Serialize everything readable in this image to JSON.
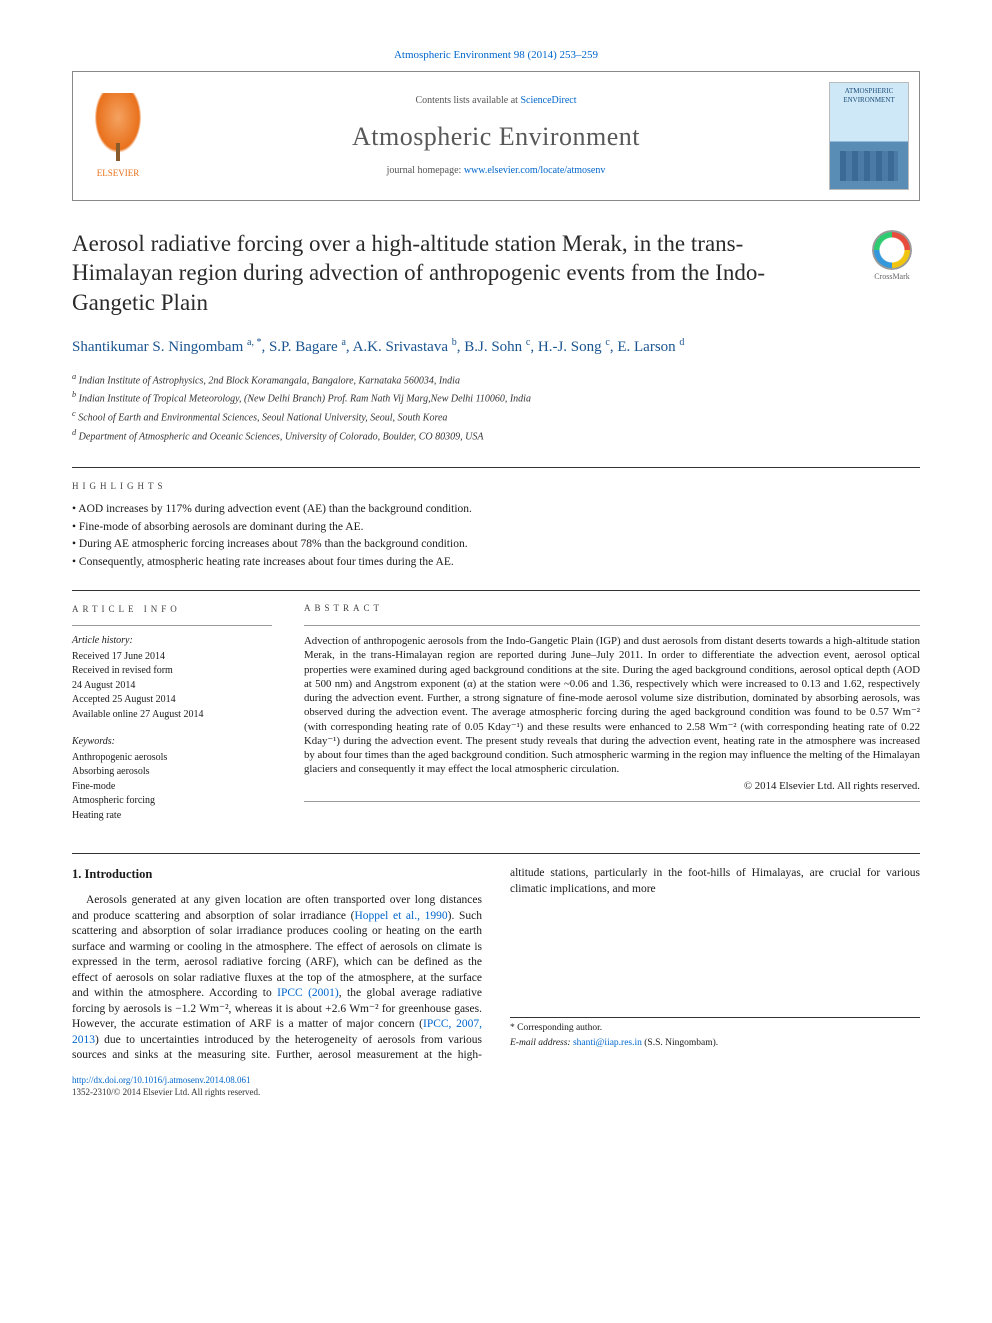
{
  "citation": {
    "text": "Atmospheric Environment 98 (2014) 253–259",
    "journal": "Atmospheric Environment",
    "volume": "98",
    "year": "2014",
    "pages": "253–259"
  },
  "header": {
    "contents_prefix": "Contents lists available at ",
    "contents_link": "ScienceDirect",
    "journal_name": "Atmospheric Environment",
    "homepage_prefix": "journal homepage: ",
    "homepage_link": "www.elsevier.com/locate/atmosenv",
    "publisher_name": "ELSEVIER",
    "cover_title": "ATMOSPHERIC ENVIRONMENT"
  },
  "crossmark_label": "CrossMark",
  "article": {
    "title": "Aerosol radiative forcing over a high-altitude station Merak, in the trans-Himalayan region during advection of anthropogenic events from the Indo-Gangetic Plain",
    "authors_html": "Shantikumar S. Ningombam <sup>a, *</sup>, S.P. Bagare <sup>a</sup>, A.K. Srivastava <sup>b</sup>, B.J. Sohn <sup>c</sup>, H.-J. Song <sup>c</sup>, E. Larson <sup>d</sup>",
    "affiliations": [
      "a Indian Institute of Astrophysics, 2nd Block Koramangala, Bangalore, Karnataka 560034, India",
      "b Indian Institute of Tropical Meteorology, (New Delhi Branch) Prof. Ram Nath Vij Marg,New Delhi 110060, India",
      "c School of Earth and Environmental Sciences, Seoul National University, Seoul, South Korea",
      "d Department of Atmospheric and Oceanic Sciences, University of Colorado, Boulder, CO 80309, USA"
    ]
  },
  "highlights": {
    "label": "HIGHLIGHTS",
    "items": [
      "AOD increases by 117% during advection event (AE) than the background condition.",
      "Fine-mode of absorbing aerosols are dominant during the AE.",
      "During AE atmospheric forcing increases about 78% than the background condition.",
      "Consequently, atmospheric heating rate increases about four times during the AE."
    ]
  },
  "article_info": {
    "label": "ARTICLE INFO",
    "history_head": "Article history:",
    "history": [
      "Received 17 June 2014",
      "Received in revised form",
      "24 August 2014",
      "Accepted 25 August 2014",
      "Available online 27 August 2014"
    ],
    "keywords_head": "Keywords:",
    "keywords": [
      "Anthropogenic aerosols",
      "Absorbing aerosols",
      "Fine-mode",
      "Atmospheric forcing",
      "Heating rate"
    ]
  },
  "abstract": {
    "label": "ABSTRACT",
    "text": "Advection of anthropogenic aerosols from the Indo-Gangetic Plain (IGP) and dust aerosols from distant deserts towards a high-altitude station Merak, in the trans-Himalayan region are reported during June–July 2011. In order to differentiate the advection event, aerosol optical properties were examined during aged background conditions at the site. During the aged background conditions, aerosol optical depth (AOD at 500 nm) and Angstrom exponent (α) at the station were ~0.06 and 1.36, respectively which were increased to 0.13 and 1.62, respectively during the advection event. Further, a strong signature of fine-mode aerosol volume size distribution, dominated by absorbing aerosols, was observed during the advection event. The average atmospheric forcing during the aged background condition was found to be 0.57 Wm⁻² (with corresponding heating rate of 0.05 Kday⁻¹) and these results were enhanced to 2.58 Wm⁻² (with corresponding heating rate of 0.22 Kday⁻¹) during the advection event. The present study reveals that during the advection event, heating rate in the atmosphere was increased by about four times than the aged background condition. Such atmospheric warming in the region may influence the melting of the Himalayan glaciers and consequently it may effect the local atmospheric circulation.",
    "copyright": "© 2014 Elsevier Ltd. All rights reserved."
  },
  "body": {
    "section_number": "1.",
    "section_title": "Introduction",
    "p1_pre": "Aerosols generated at any given location are often transported over long distances and produce scattering and absorption of solar irradiance (",
    "p1_cite": "Hoppel et al., 1990",
    "p1_post": "). Such scattering and absorption of solar irradiance produces cooling or heating on the earth surface and warming or cooling in the atmosphere. The effect of aerosols on",
    "p2_a": "climate is expressed in the term, aerosol radiative forcing (ARF), which can be defined as the effect of aerosols on solar radiative fluxes at the top of the atmosphere, at the surface and within the atmosphere. According to ",
    "p2_cite1": "IPCC (2001)",
    "p2_b": ", the global average radiative forcing by aerosols is −1.2 Wm⁻², whereas it is about +2.6 Wm⁻² for greenhouse gases. However, the accurate estimation of ARF is a matter of major concern (",
    "p2_cite2": "IPCC, 2007, 2013",
    "p2_c": ") due to uncertainties introduced by the heterogeneity of aerosols from various sources and sinks at the measuring site. Further, aerosol measurement at the high-altitude stations, particularly in the foot-hills of Himalayas, are crucial for various climatic implications, and more"
  },
  "footnotes": {
    "corresponding": "* Corresponding author.",
    "email_prefix": "E-mail address: ",
    "email": "shanti@iiap.res.in",
    "email_suffix": " (S.S. Ningombam)."
  },
  "footer": {
    "doi": "http://dx.doi.org/10.1016/j.atmosenv.2014.08.061",
    "issn_line": "1352-2310/© 2014 Elsevier Ltd. All rights reserved."
  },
  "colors": {
    "link": "#0066cc",
    "text": "#1a1a1a",
    "author": "#1a5490",
    "elsevier": "#e9711c"
  }
}
